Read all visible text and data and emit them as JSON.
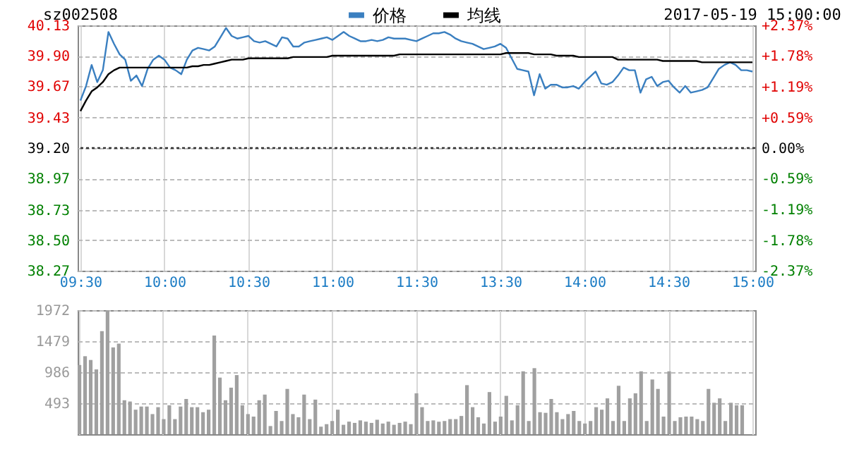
{
  "chart_data": [
    {
      "type": "line",
      "title": "sz002508",
      "annotations": [
        "2017-05-19 15:00:00"
      ],
      "categories": [
        "09:30",
        null,
        null,
        null,
        null,
        null,
        null,
        null,
        null,
        null,
        null,
        null,
        null,
        null,
        null,
        "10:00",
        null,
        null,
        null,
        null,
        null,
        null,
        null,
        null,
        null,
        null,
        null,
        null,
        null,
        null,
        "10:30",
        null,
        null,
        null,
        null,
        null,
        null,
        null,
        null,
        null,
        null,
        null,
        null,
        null,
        null,
        "11:00",
        null,
        null,
        null,
        null,
        null,
        null,
        null,
        null,
        null,
        null,
        null,
        null,
        null,
        null,
        "11:30",
        null,
        null,
        null,
        null,
        null,
        null,
        null,
        null,
        null,
        null,
        null,
        null,
        null,
        null,
        "13:30",
        null,
        null,
        null,
        null,
        null,
        null,
        null,
        null,
        null,
        null,
        null,
        null,
        null,
        null,
        "14:00",
        null,
        null,
        null,
        null,
        null,
        null,
        null,
        null,
        null,
        null,
        null,
        null,
        null,
        null,
        "14:30",
        null,
        null,
        null,
        null,
        null,
        null,
        null,
        null,
        null,
        null,
        null,
        null,
        null,
        null,
        "15:00"
      ],
      "series": [
        {
          "name": "价格",
          "color": "#3a7fc0",
          "values": [
            39.56,
            39.67,
            39.83,
            39.7,
            39.79,
            40.08,
            39.99,
            39.91,
            39.87,
            39.71,
            39.75,
            39.67,
            39.8,
            39.87,
            39.9,
            39.87,
            39.81,
            39.79,
            39.76,
            39.87,
            39.94,
            39.96,
            39.95,
            39.94,
            39.97,
            40.04,
            40.11,
            40.05,
            40.03,
            40.04,
            40.05,
            40.01,
            40.0,
            40.01,
            39.99,
            39.97,
            40.04,
            40.03,
            39.97,
            39.97,
            40.0,
            40.01,
            40.02,
            40.03,
            40.04,
            40.02,
            40.05,
            40.08,
            40.05,
            40.03,
            40.01,
            40.01,
            40.02,
            40.01,
            40.02,
            40.04,
            40.03,
            40.03,
            40.03,
            40.02,
            40.01,
            40.03,
            40.05,
            40.07,
            40.07,
            40.08,
            40.06,
            40.03,
            40.01,
            40.0,
            39.99,
            39.97,
            39.95,
            39.96,
            39.97,
            39.99,
            39.96,
            39.88,
            39.8,
            39.79,
            39.78,
            39.6,
            39.76,
            39.65,
            39.68,
            39.68,
            39.66,
            39.66,
            39.67,
            39.65,
            39.7,
            39.74,
            39.78,
            39.69,
            39.68,
            39.7,
            39.75,
            39.81,
            39.79,
            39.79,
            39.62,
            39.72,
            39.74,
            39.67,
            39.7,
            39.71,
            39.66,
            39.62,
            39.67,
            39.62,
            39.63,
            39.64,
            39.66,
            39.73,
            39.8,
            39.83,
            39.85,
            39.83,
            39.79,
            39.79,
            39.78
          ]
        },
        {
          "name": "均线",
          "color": "#000000",
          "values": [
            39.48,
            39.56,
            39.63,
            39.66,
            39.7,
            39.76,
            39.79,
            39.81,
            39.81,
            39.81,
            39.81,
            39.81,
            39.81,
            39.81,
            39.81,
            39.81,
            39.81,
            39.81,
            39.81,
            39.81,
            39.82,
            39.82,
            39.83,
            39.83,
            39.84,
            39.85,
            39.86,
            39.87,
            39.87,
            39.87,
            39.88,
            39.88,
            39.88,
            39.88,
            39.88,
            39.88,
            39.88,
            39.88,
            39.89,
            39.89,
            39.89,
            39.89,
            39.89,
            39.89,
            39.89,
            39.9,
            39.9,
            39.9,
            39.9,
            39.9,
            39.9,
            39.9,
            39.9,
            39.9,
            39.9,
            39.9,
            39.9,
            39.91,
            39.91,
            39.91,
            39.91,
            39.91,
            39.91,
            39.91,
            39.91,
            39.91,
            39.91,
            39.91,
            39.91,
            39.91,
            39.91,
            39.91,
            39.91,
            39.91,
            39.91,
            39.91,
            39.92,
            39.92,
            39.92,
            39.92,
            39.92,
            39.91,
            39.91,
            39.91,
            39.91,
            39.9,
            39.9,
            39.9,
            39.9,
            39.89,
            39.89,
            39.89,
            39.89,
            39.89,
            39.89,
            39.89,
            39.87,
            39.87,
            39.87,
            39.87,
            39.87,
            39.87,
            39.87,
            39.87,
            39.86,
            39.86,
            39.86,
            39.86,
            39.86,
            39.86,
            39.86,
            39.85,
            39.85,
            39.85,
            39.85,
            39.85,
            39.85,
            39.85,
            39.85,
            39.85,
            39.85
          ]
        }
      ],
      "ylim": [
        38.27,
        40.13
      ],
      "yticks": [
        38.27,
        {
          "value": 38.5,
          "label": "38.50"
        },
        38.73,
        38.97,
        {
          "value": 39.2,
          "label": "39.20"
        },
        39.43,
        39.67,
        {
          "value": 39.9,
          "label": "39.90"
        },
        40.13
      ],
      "y2lim": [
        -2.37,
        2.37
      ],
      "y2ticks": [
        {
          "value": -2.37,
          "label": "-2.37%"
        },
        {
          "value": -1.78,
          "label": "-1.78%"
        },
        {
          "value": -1.19,
          "label": "-1.19%"
        },
        {
          "value": -0.59,
          "label": "-0.59%"
        },
        {
          "value": 0,
          "label": "0.00%"
        },
        {
          "value": 0.59,
          "label": "+0.59%"
        },
        {
          "value": 1.19,
          "label": "+1.19%"
        },
        {
          "value": 1.78,
          "label": "+1.78%"
        },
        {
          "value": 2.37,
          "label": "+2.37%"
        }
      ],
      "ref_lines": [
        {
          "axis": "y",
          "value": 39.2,
          "color": "#333333",
          "line_style": "dotted"
        }
      ],
      "grid": true,
      "legend": "top"
    },
    {
      "type": "bar",
      "color": "#a0a0a0",
      "categories": [
        null,
        null,
        null,
        null,
        null,
        null,
        null,
        null,
        null,
        null,
        null,
        null,
        null,
        null,
        null,
        null,
        null,
        null,
        null,
        null,
        null,
        null,
        null,
        null,
        null,
        null,
        null,
        null,
        null,
        null,
        null,
        null,
        null,
        null,
        null,
        null,
        null,
        null,
        null,
        null,
        null,
        null,
        null,
        null,
        null,
        null,
        null,
        null,
        null,
        null,
        null,
        null,
        null,
        null,
        null,
        null,
        null,
        null,
        null,
        null,
        null,
        null,
        null,
        null,
        null,
        null,
        null,
        null,
        null,
        null,
        null,
        null,
        null,
        null,
        null,
        null,
        null,
        null,
        null,
        null,
        null,
        null,
        null,
        null,
        null,
        null,
        null,
        null,
        null,
        null,
        null,
        null,
        null,
        null,
        null,
        null,
        null,
        null,
        null,
        null,
        null,
        null,
        null,
        null,
        null,
        null,
        null,
        null,
        null,
        null,
        null,
        null,
        null,
        null,
        null,
        null,
        null,
        null,
        null,
        null,
        null
      ],
      "values": [
        1100,
        1240,
        1180,
        1030,
        1640,
        1970,
        1380,
        1440,
        540,
        520,
        390,
        440,
        440,
        320,
        430,
        240,
        460,
        240,
        440,
        560,
        430,
        430,
        350,
        390,
        1570,
        900,
        540,
        740,
        940,
        460,
        320,
        280,
        540,
        630,
        130,
        370,
        210,
        720,
        320,
        270,
        630,
        240,
        550,
        120,
        160,
        210,
        390,
        150,
        200,
        180,
        220,
        200,
        180,
        230,
        170,
        200,
        150,
        180,
        200,
        160,
        650,
        430,
        210,
        220,
        200,
        210,
        240,
        240,
        290,
        780,
        430,
        270,
        170,
        670,
        200,
        280,
        610,
        220,
        460,
        1000,
        210,
        1050,
        350,
        340,
        560,
        350,
        240,
        320,
        370,
        210,
        170,
        210,
        430,
        390,
        570,
        210,
        770,
        210,
        570,
        650,
        1000,
        210,
        870,
        720,
        280,
        1000,
        210,
        270,
        280,
        280,
        240,
        210,
        720,
        500,
        570,
        210,
        500,
        460,
        460,
        null,
        null
      ],
      "ylim": [
        0,
        1972
      ],
      "yticks": [
        493,
        986,
        1479,
        1972
      ],
      "grid": true,
      "tick_labels": "y"
    }
  ]
}
